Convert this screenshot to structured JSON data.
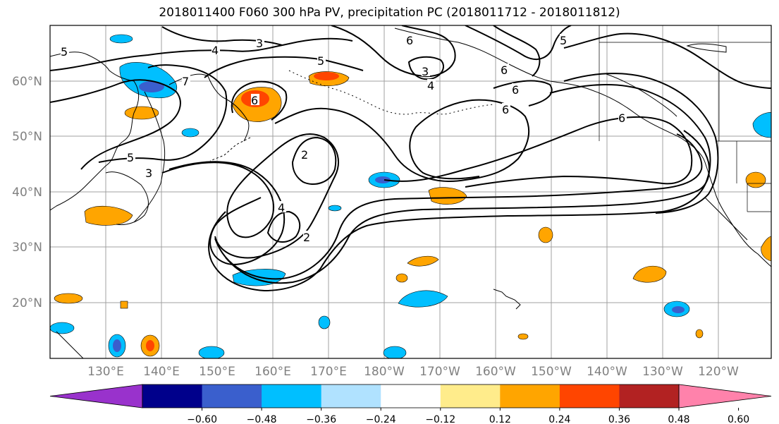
{
  "title": "2018011400 F060 300 hPa PV, precipitation PC (2018011712 - 2018011812)",
  "lat_labels": [
    "60°N",
    "50°N",
    "40°N",
    "30°N",
    "20°N"
  ],
  "lon_labels": [
    "130°E",
    "140°E",
    "150°E",
    "160°E",
    "170°E",
    "180°W",
    "170°W",
    "160°W",
    "150°W",
    "140°W",
    "130°W",
    "120°W"
  ],
  "colorbar": {
    "colors": [
      "#9932cc",
      "#00008b",
      "#3a5fcd",
      "#00bfff",
      "#b0e2ff",
      "#ffffff",
      "#ffec8b",
      "#ffa500",
      "#ff4500",
      "#b22222",
      "#ff82ab"
    ],
    "tick_labels": [
      "−0.60",
      "−0.48",
      "−0.36",
      "−0.24",
      "−0.12",
      "0.12",
      "0.24",
      "0.36",
      "0.48",
      "0.60"
    ],
    "levels": [
      -0.6,
      -0.48,
      -0.36,
      -0.24,
      -0.12,
      0.12,
      0.24,
      0.36,
      0.48,
      0.6
    ]
  },
  "contour_labels": [
    "5",
    "4",
    "3",
    "5",
    "6",
    "3",
    "4",
    "6",
    "5",
    "6",
    "6",
    "6",
    "7",
    "6",
    "2",
    "5",
    "3",
    "4",
    "2"
  ],
  "colors": {
    "contour": "#000000",
    "grid": "#a0a0a0",
    "coast": "#000000"
  }
}
